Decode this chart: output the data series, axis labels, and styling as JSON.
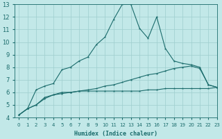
{
  "xlabel": "Humidex (Indice chaleur)",
  "background_color": "#c2e8e8",
  "grid_color": "#9ecece",
  "line_color": "#1a6b6b",
  "xlim": [
    -0.5,
    23
  ],
  "ylim": [
    4,
    13
  ],
  "xticks": [
    0,
    1,
    2,
    3,
    4,
    5,
    6,
    7,
    8,
    9,
    10,
    11,
    12,
    13,
    14,
    15,
    16,
    17,
    18,
    19,
    20,
    21,
    22,
    23
  ],
  "yticks": [
    4,
    5,
    6,
    7,
    8,
    9,
    10,
    11,
    12,
    13
  ],
  "line1_x": [
    0,
    1,
    2,
    3,
    4,
    5,
    6,
    7,
    8,
    9,
    10,
    11,
    12,
    13,
    14,
    15,
    16,
    17,
    18,
    19,
    20,
    21,
    22,
    23
  ],
  "line1_y": [
    4.2,
    4.7,
    5.0,
    5.6,
    5.8,
    6.0,
    6.0,
    6.1,
    6.1,
    6.1,
    6.1,
    6.1,
    6.1,
    6.1,
    6.1,
    6.2,
    6.2,
    6.3,
    6.3,
    6.3,
    6.3,
    6.3,
    6.3,
    6.4
  ],
  "line2_x": [
    0,
    1,
    2,
    3,
    4,
    5,
    6,
    7,
    8,
    9,
    10,
    11,
    12,
    13,
    14,
    15,
    16,
    17,
    18,
    19,
    20,
    21,
    22,
    23
  ],
  "line2_y": [
    4.2,
    4.7,
    5.0,
    5.5,
    5.8,
    5.9,
    6.0,
    6.1,
    6.2,
    6.3,
    6.5,
    6.6,
    6.8,
    7.0,
    7.2,
    7.4,
    7.5,
    7.7,
    7.9,
    8.0,
    8.1,
    7.9,
    6.6,
    6.4
  ],
  "line3_x": [
    0,
    1,
    2,
    3,
    4,
    5,
    6,
    7,
    8,
    9,
    10,
    11,
    12,
    13,
    14,
    15,
    16,
    17,
    18,
    19,
    20,
    21,
    22,
    23
  ],
  "line3_y": [
    4.2,
    4.7,
    6.2,
    6.5,
    6.7,
    7.8,
    8.0,
    8.5,
    8.8,
    9.8,
    10.4,
    11.8,
    13.0,
    13.0,
    11.1,
    10.3,
    12.0,
    9.5,
    8.5,
    8.3,
    8.2,
    8.0,
    6.6,
    6.4
  ]
}
